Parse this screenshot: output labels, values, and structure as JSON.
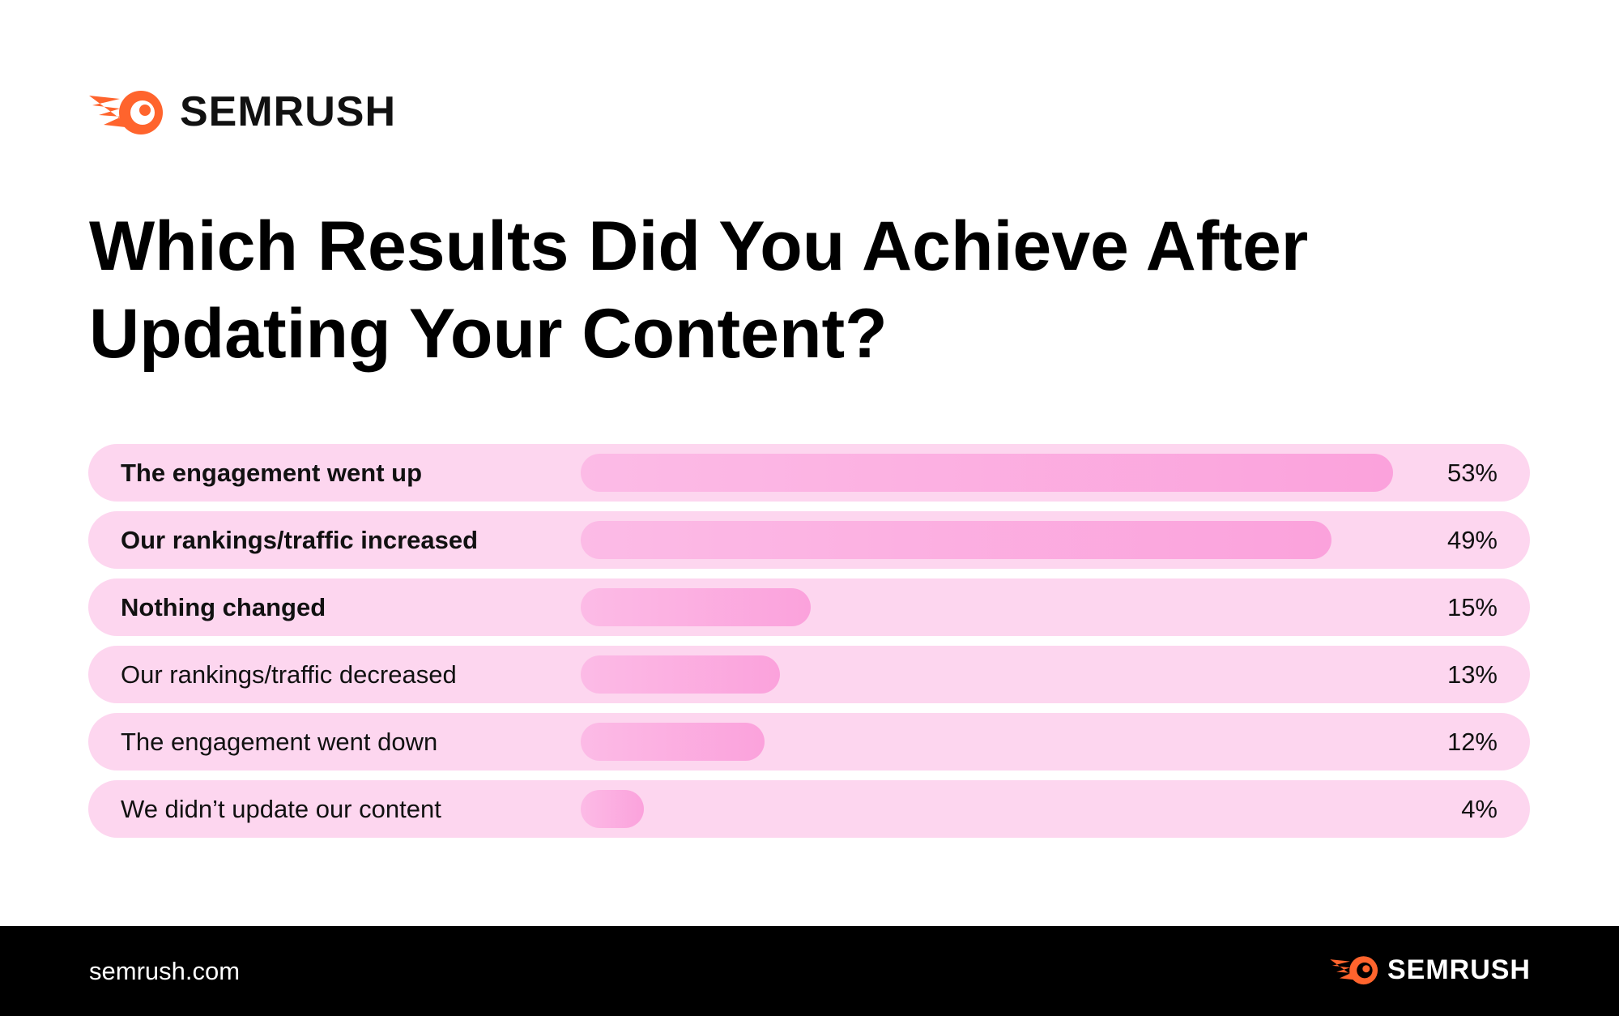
{
  "brand": {
    "name": "SEMRUSH",
    "accent_color": "#ff642d",
    "logo_icon": "semrush-fireball-icon"
  },
  "title": "Which Results Did You Achieve After Updating Your Content?",
  "chart_data": {
    "type": "bar",
    "orientation": "horizontal",
    "title": "Which Results Did You Achieve After Updating Your Content?",
    "categories": [
      "The engagement went up",
      "Our rankings/traffic increased",
      "Nothing changed",
      "Our rankings/traffic decreased",
      "The engagement went down",
      "We didn’t update our content"
    ],
    "values": [
      53,
      49,
      15,
      13,
      12,
      4
    ],
    "value_labels": [
      "53%",
      "49%",
      "15%",
      "13%",
      "12%",
      "4%"
    ],
    "unit": "%",
    "xlim": [
      0,
      53
    ],
    "bar_color": "#fba2dc",
    "row_color": "#fdd6ef"
  },
  "footer": {
    "url": "semrush.com",
    "logo_text": "SEMRUSH"
  }
}
